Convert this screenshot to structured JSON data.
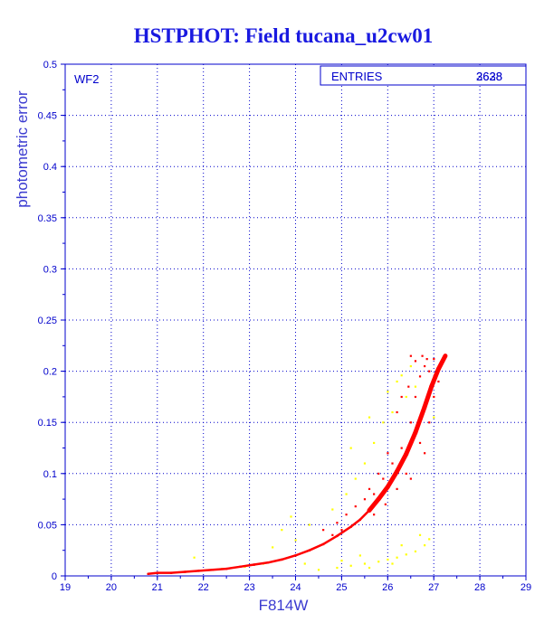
{
  "chart_data": {
    "type": "scatter",
    "title": "HSTPHOT: Field tucana_u2cw01",
    "xlabel": "F814W",
    "ylabel": "photometric error",
    "xlim": [
      19,
      29
    ],
    "ylim": [
      0,
      0.5
    ],
    "xticks": [
      "19",
      "20",
      "21",
      "22",
      "23",
      "24",
      "25",
      "26",
      "27",
      "28",
      "29"
    ],
    "yticks": [
      "0",
      "0.05",
      "0.1",
      "0.15",
      "0.2",
      "0.25",
      "0.3",
      "0.35",
      "0.4",
      "0.45",
      "0.5"
    ],
    "grid": true,
    "panel_label": "WF2",
    "stats_box": {
      "label": "ENTRIES",
      "values": [
        "2628",
        "3638"
      ]
    },
    "series": [
      {
        "color": "#ff0000",
        "points": [
          [
            20.8,
            0.002
          ],
          [
            21.0,
            0.003
          ],
          [
            21.3,
            0.003
          ],
          [
            21.6,
            0.004
          ],
          [
            21.9,
            0.005
          ],
          [
            22.2,
            0.006
          ],
          [
            22.5,
            0.007
          ],
          [
            22.8,
            0.009
          ],
          [
            23.1,
            0.011
          ],
          [
            23.4,
            0.013
          ],
          [
            23.7,
            0.016
          ],
          [
            24.0,
            0.02
          ],
          [
            24.3,
            0.025
          ],
          [
            24.6,
            0.031
          ],
          [
            24.9,
            0.039
          ],
          [
            25.2,
            0.048
          ],
          [
            25.4,
            0.055
          ],
          [
            25.6,
            0.064
          ],
          [
            25.8,
            0.075
          ],
          [
            26.0,
            0.087
          ],
          [
            26.2,
            0.102
          ],
          [
            26.4,
            0.119
          ],
          [
            26.6,
            0.14
          ],
          [
            26.8,
            0.165
          ],
          [
            26.95,
            0.185
          ],
          [
            27.1,
            0.202
          ],
          [
            27.25,
            0.215
          ],
          [
            24.6,
            0.045
          ],
          [
            24.9,
            0.052
          ],
          [
            25.1,
            0.06
          ],
          [
            25.3,
            0.068
          ],
          [
            25.5,
            0.075
          ],
          [
            25.7,
            0.08
          ],
          [
            25.9,
            0.095
          ],
          [
            26.1,
            0.11
          ],
          [
            26.3,
            0.125
          ],
          [
            26.5,
            0.15
          ],
          [
            26.6,
            0.175
          ],
          [
            26.7,
            0.195
          ],
          [
            26.8,
            0.205
          ],
          [
            26.85,
            0.212
          ],
          [
            27.0,
            0.212
          ],
          [
            26.9,
            0.15
          ],
          [
            26.7,
            0.13
          ],
          [
            26.4,
            0.1
          ],
          [
            26.2,
            0.085
          ],
          [
            25.95,
            0.07
          ],
          [
            25.7,
            0.06
          ],
          [
            24.8,
            0.04
          ],
          [
            25.0,
            0.045
          ],
          [
            26.5,
            0.215
          ],
          [
            26.6,
            0.21
          ],
          [
            26.75,
            0.215
          ],
          [
            26.9,
            0.2
          ],
          [
            26.3,
            0.175
          ],
          [
            26.45,
            0.185
          ],
          [
            26.2,
            0.16
          ],
          [
            26.5,
            0.095
          ],
          [
            26.8,
            0.12
          ],
          [
            27.0,
            0.175
          ],
          [
            27.1,
            0.19
          ],
          [
            26.0,
            0.12
          ],
          [
            25.8,
            0.1
          ],
          [
            25.6,
            0.085
          ]
        ]
      },
      {
        "color": "#ffff00",
        "points": [
          [
            21.8,
            0.018
          ],
          [
            22.4,
            0.007
          ],
          [
            22.9,
            0.009
          ],
          [
            23.3,
            0.012
          ],
          [
            23.5,
            0.028
          ],
          [
            23.7,
            0.045
          ],
          [
            23.9,
            0.058
          ],
          [
            24.2,
            0.012
          ],
          [
            24.5,
            0.006
          ],
          [
            24.9,
            0.008
          ],
          [
            25.2,
            0.01
          ],
          [
            25.5,
            0.012
          ],
          [
            25.8,
            0.014
          ],
          [
            26.0,
            0.016
          ],
          [
            26.2,
            0.018
          ],
          [
            26.4,
            0.021
          ],
          [
            26.6,
            0.024
          ],
          [
            26.8,
            0.03
          ],
          [
            26.9,
            0.036
          ],
          [
            24.8,
            0.065
          ],
          [
            25.1,
            0.08
          ],
          [
            25.3,
            0.095
          ],
          [
            25.5,
            0.11
          ],
          [
            25.7,
            0.13
          ],
          [
            25.9,
            0.15
          ],
          [
            26.1,
            0.16
          ],
          [
            26.4,
            0.175
          ],
          [
            26.6,
            0.185
          ],
          [
            26.2,
            0.19
          ],
          [
            26.5,
            0.205
          ],
          [
            25.0,
            0.015
          ],
          [
            25.4,
            0.02
          ],
          [
            25.6,
            0.008
          ],
          [
            26.3,
            0.03
          ],
          [
            26.1,
            0.012
          ],
          [
            26.7,
            0.04
          ],
          [
            24.0,
            0.035
          ],
          [
            24.3,
            0.05
          ],
          [
            25.2,
            0.125
          ],
          [
            25.6,
            0.155
          ],
          [
            26.0,
            0.18
          ],
          [
            26.3,
            0.196
          ],
          [
            26.8,
            0.165
          ],
          [
            27.0,
            0.155
          ]
        ]
      }
    ]
  }
}
